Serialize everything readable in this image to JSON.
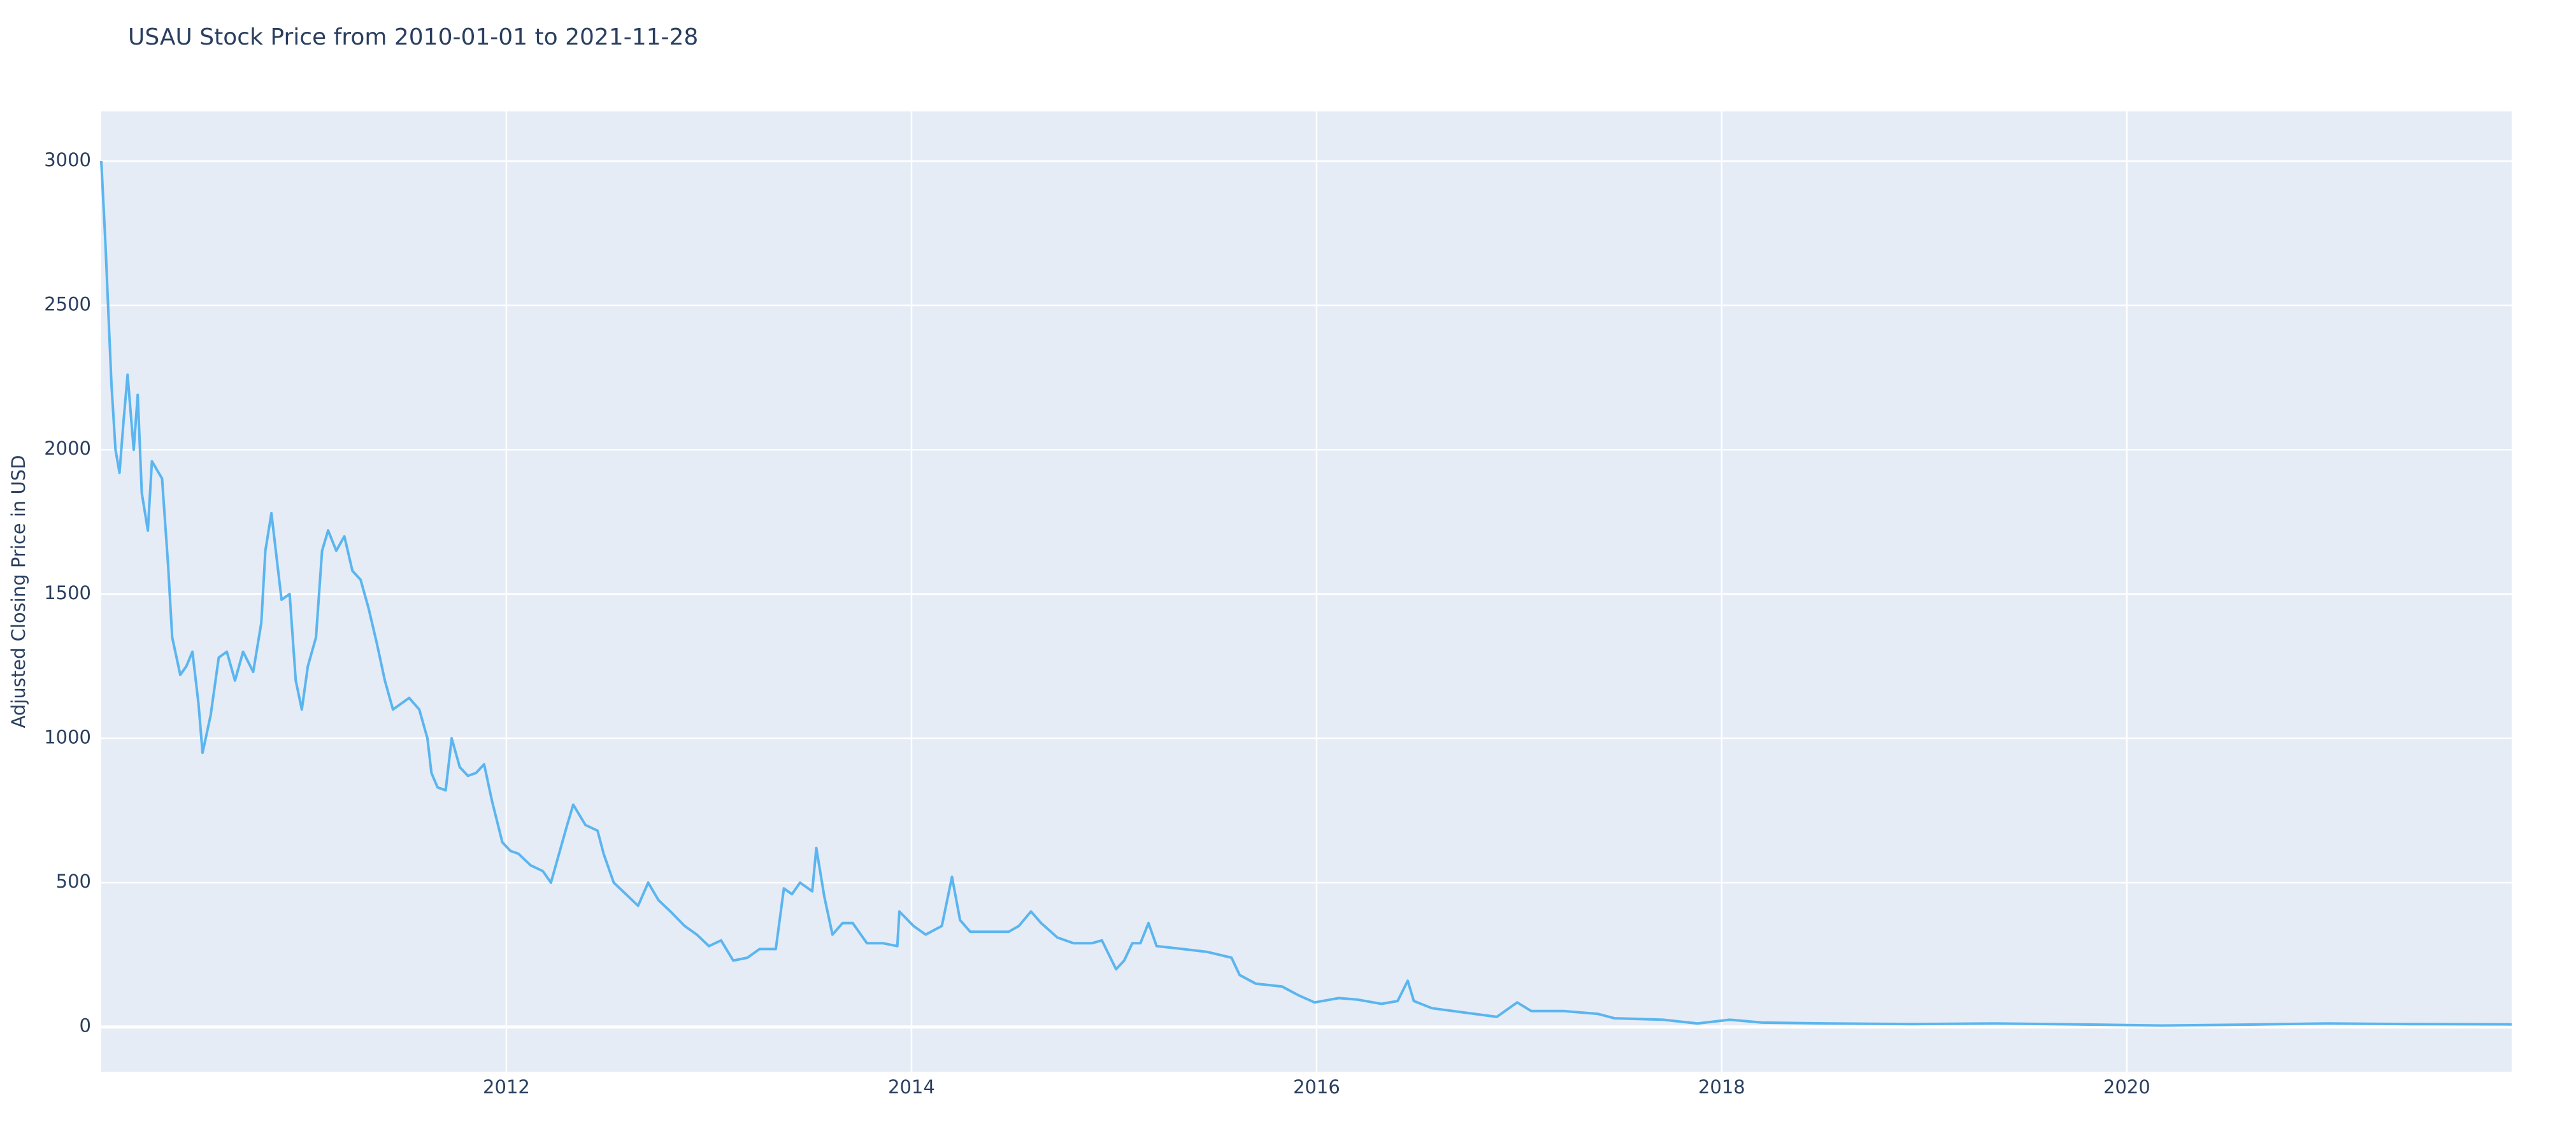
{
  "chart_data": {
    "type": "line",
    "title": "USAU Stock Price from 2010-01-01 to 2021-11-28",
    "y_label": "Adjusted Closing Price in USD",
    "x": [
      2010.0,
      2010.02,
      2010.05,
      2010.07,
      2010.09,
      2010.11,
      2010.13,
      2010.16,
      2010.18,
      2010.2,
      2010.23,
      2010.25,
      2010.3,
      2010.33,
      2010.35,
      2010.39,
      2010.42,
      2010.45,
      2010.48,
      2010.5,
      2010.54,
      2010.58,
      2010.62,
      2010.66,
      2010.7,
      2010.75,
      2010.79,
      2010.81,
      2010.84,
      2010.87,
      2010.89,
      2010.93,
      2010.96,
      2010.99,
      2011.02,
      2011.06,
      2011.09,
      2011.12,
      2011.16,
      2011.2,
      2011.24,
      2011.28,
      2011.32,
      2011.36,
      2011.4,
      2011.44,
      2011.48,
      2011.52,
      2011.57,
      2011.61,
      2011.63,
      2011.66,
      2011.7,
      2011.73,
      2011.77,
      2011.81,
      2011.85,
      2011.89,
      2011.93,
      2011.98,
      2012.02,
      2012.06,
      2012.12,
      2012.18,
      2012.22,
      2012.26,
      2012.3,
      2012.33,
      2012.39,
      2012.45,
      2012.48,
      2012.53,
      2012.59,
      2012.65,
      2012.7,
      2012.75,
      2012.81,
      2012.88,
      2012.94,
      2013.0,
      2013.06,
      2013.12,
      2013.19,
      2013.25,
      2013.33,
      2013.37,
      2013.41,
      2013.45,
      2013.51,
      2013.53,
      2013.57,
      2013.61,
      2013.66,
      2013.71,
      2013.78,
      2013.86,
      2013.93,
      2013.94,
      2014.01,
      2014.07,
      2014.15,
      2014.2,
      2014.24,
      2014.29,
      2014.39,
      2014.48,
      2014.53,
      2014.59,
      2014.64,
      2014.72,
      2014.8,
      2014.89,
      2014.94,
      2015.01,
      2015.05,
      2015.09,
      2015.13,
      2015.17,
      2015.21,
      2015.34,
      2015.46,
      2015.58,
      2015.62,
      2015.7,
      2015.83,
      2015.91,
      2015.99,
      2016.11,
      2016.2,
      2016.32,
      2016.4,
      2016.45,
      2016.48,
      2016.57,
      2016.73,
      2016.89,
      2016.99,
      2017.06,
      2017.22,
      2017.39,
      2017.47,
      2017.71,
      2017.88,
      2018.04,
      2018.2,
      2018.53,
      2018.94,
      2019.35,
      2019.76,
      2020.17,
      2020.58,
      2020.99,
      2021.4,
      2021.9
    ],
    "series": [
      {
        "name": "USAU",
        "color": "#5bb5ef",
        "values": [
          3000,
          2720,
          2230,
          2000,
          1920,
          2100,
          2260,
          2000,
          2190,
          1850,
          1720,
          1960,
          1900,
          1600,
          1350,
          1220,
          1250,
          1300,
          1120,
          950,
          1080,
          1280,
          1300,
          1200,
          1300,
          1230,
          1400,
          1650,
          1780,
          1600,
          1480,
          1500,
          1200,
          1100,
          1250,
          1350,
          1650,
          1720,
          1650,
          1700,
          1580,
          1550,
          1450,
          1330,
          1200,
          1100,
          1120,
          1140,
          1100,
          1000,
          880,
          830,
          820,
          1000,
          900,
          870,
          880,
          910,
          780,
          640,
          610,
          600,
          560,
          540,
          500,
          600,
          700,
          770,
          700,
          680,
          600,
          500,
          460,
          420,
          500,
          440,
          400,
          350,
          320,
          280,
          300,
          230,
          240,
          270,
          270,
          480,
          460,
          500,
          470,
          620,
          450,
          320,
          360,
          360,
          290,
          290,
          280,
          400,
          350,
          320,
          350,
          520,
          370,
          330,
          330,
          330,
          350,
          400,
          360,
          310,
          290,
          290,
          300,
          200,
          230,
          290,
          290,
          360,
          280,
          270,
          260,
          240,
          180,
          150,
          140,
          110,
          85,
          100,
          95,
          80,
          90,
          160,
          90,
          65,
          50,
          35,
          85,
          55,
          55,
          45,
          30,
          25,
          12,
          25,
          15,
          12,
          10,
          12,
          9,
          5,
          8,
          12,
          10,
          9
        ]
      }
    ],
    "xlim": [
      2010.0,
      2021.9
    ],
    "xticks": [
      2012,
      2014,
      2016,
      2018,
      2020
    ],
    "ylim": [
      -155,
      3172
    ],
    "yticks": [
      0,
      500,
      1000,
      1500,
      2000,
      2500,
      3000
    ],
    "grid": true
  }
}
